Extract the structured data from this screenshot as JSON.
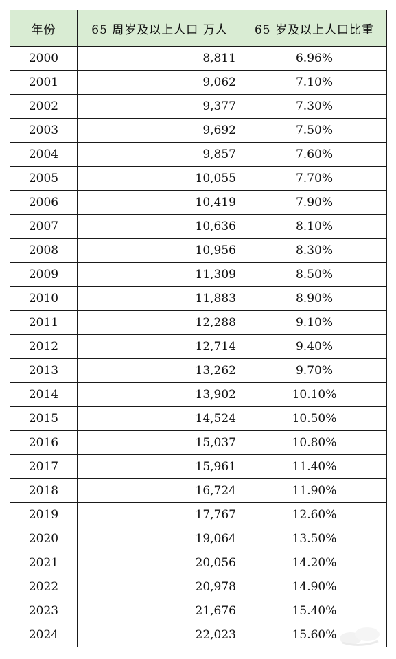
{
  "table": {
    "headers": [
      "年份",
      "65 周岁及以上人口 万人",
      "65 岁及以上人口比重"
    ],
    "rows": [
      {
        "year": "2000",
        "population": "8,811",
        "ratio": "6.96%"
      },
      {
        "year": "2001",
        "population": "9,062",
        "ratio": "7.10%"
      },
      {
        "year": "2002",
        "population": "9,377",
        "ratio": "7.30%"
      },
      {
        "year": "2003",
        "population": "9,692",
        "ratio": "7.50%"
      },
      {
        "year": "2004",
        "population": "9,857",
        "ratio": "7.60%"
      },
      {
        "year": "2005",
        "population": "10,055",
        "ratio": "7.70%"
      },
      {
        "year": "2006",
        "population": "10,419",
        "ratio": "7.90%"
      },
      {
        "year": "2007",
        "population": "10,636",
        "ratio": "8.10%"
      },
      {
        "year": "2008",
        "population": "10,956",
        "ratio": "8.30%"
      },
      {
        "year": "2009",
        "population": "11,309",
        "ratio": "8.50%"
      },
      {
        "year": "2010",
        "population": "11,883",
        "ratio": "8.90%"
      },
      {
        "year": "2011",
        "population": "12,288",
        "ratio": "9.10%"
      },
      {
        "year": "2012",
        "population": "12,714",
        "ratio": "9.40%"
      },
      {
        "year": "2013",
        "population": "13,262",
        "ratio": "9.70%"
      },
      {
        "year": "2014",
        "population": "13,902",
        "ratio": "10.10%"
      },
      {
        "year": "2015",
        "population": "14,524",
        "ratio": "10.50%"
      },
      {
        "year": "2016",
        "population": "15,037",
        "ratio": "10.80%"
      },
      {
        "year": "2017",
        "population": "15,961",
        "ratio": "11.40%"
      },
      {
        "year": "2018",
        "population": "16,724",
        "ratio": "11.90%"
      },
      {
        "year": "2019",
        "population": "17,767",
        "ratio": "12.60%"
      },
      {
        "year": "2020",
        "population": "19,064",
        "ratio": "13.50%"
      },
      {
        "year": "2021",
        "population": "20,056",
        "ratio": "14.20%"
      },
      {
        "year": "2022",
        "population": "20,978",
        "ratio": "14.90%"
      },
      {
        "year": "2023",
        "population": "21,676",
        "ratio": "15.40%"
      },
      {
        "year": "2024",
        "population": "22,023",
        "ratio": "15.60%"
      }
    ]
  },
  "style": {
    "header_bg": "#d9ecd3",
    "border": "#1a1a1a"
  },
  "watermark": {
    "icon": "watermark-logo-icon"
  }
}
